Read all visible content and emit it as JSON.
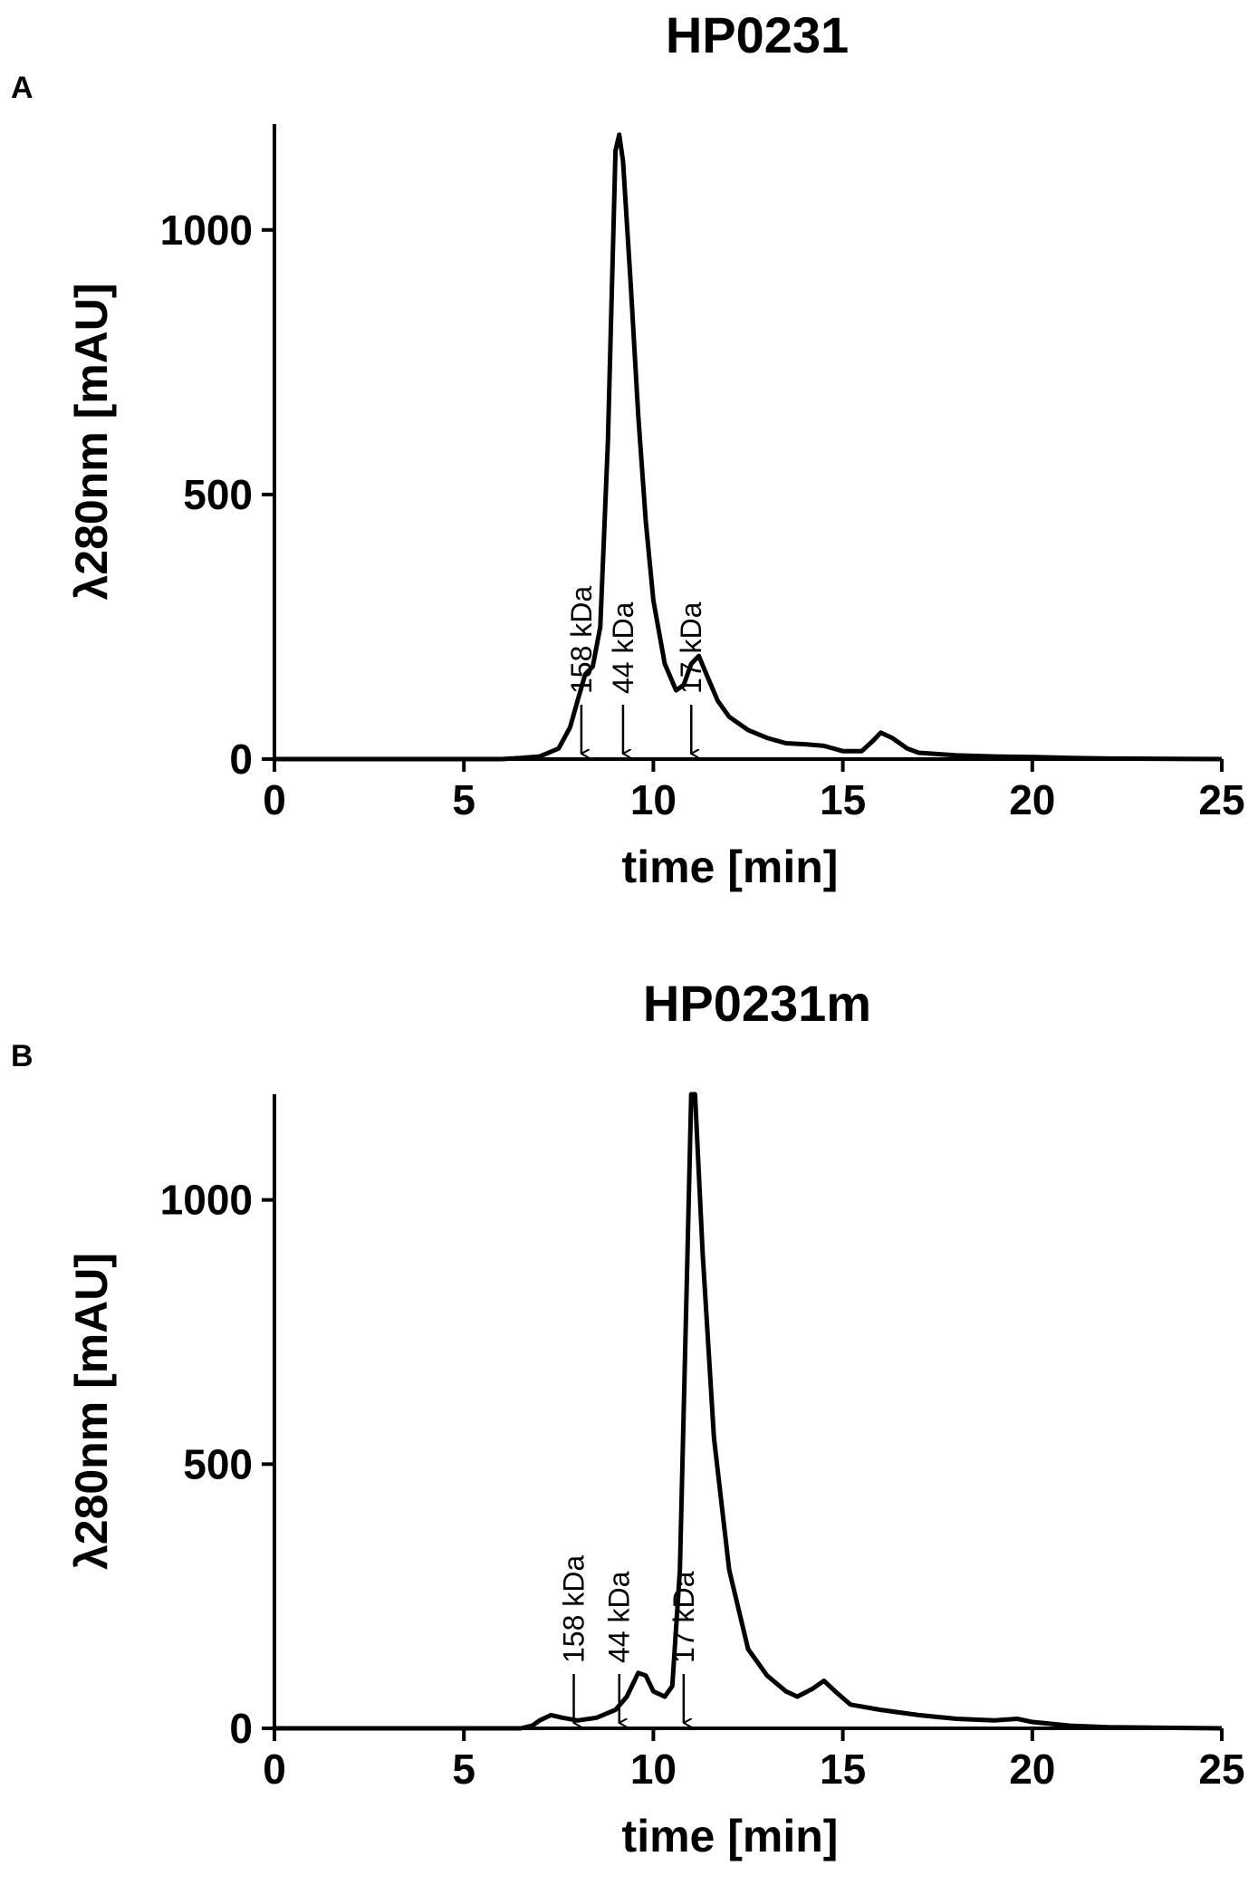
{
  "chart_data": [
    {
      "type": "line",
      "panel_label": "A",
      "title": "HP0231",
      "x_label": "time [min]",
      "y_label": "λ280nm [mAU]",
      "xlim": [
        0,
        25
      ],
      "ylim": [
        0,
        1200
      ],
      "xticks": [
        0,
        5,
        10,
        15,
        20,
        25
      ],
      "yticks": [
        0,
        500,
        1000
      ],
      "color": "#000000",
      "x": [
        0,
        6,
        6.5,
        7,
        7.5,
        7.8,
        8,
        8.2,
        8.4,
        8.6,
        8.8,
        9,
        9.1,
        9.2,
        9.4,
        9.6,
        9.8,
        10,
        10.3,
        10.6,
        10.8,
        11,
        11.2,
        11.4,
        11.7,
        12,
        12.5,
        13,
        13.5,
        14,
        14.5,
        15,
        15.5,
        15.8,
        16,
        16.3,
        16.7,
        17,
        18,
        19,
        20,
        21,
        22,
        25
      ],
      "values": [
        0,
        0,
        2,
        5,
        20,
        60,
        110,
        160,
        175,
        250,
        600,
        1150,
        1180,
        1130,
        900,
        650,
        450,
        300,
        180,
        130,
        140,
        180,
        195,
        160,
        110,
        80,
        55,
        40,
        30,
        28,
        25,
        15,
        15,
        35,
        50,
        40,
        20,
        12,
        7,
        5,
        4,
        2,
        1,
        0
      ],
      "annotations": [
        {
          "text": "158 kDa",
          "x": 8.1
        },
        {
          "text": "44 kDa",
          "x": 9.2
        },
        {
          "text": "17 kDa",
          "x": 11.0
        }
      ]
    },
    {
      "type": "line",
      "panel_label": "B",
      "title": "HP0231m",
      "x_label": "time [min]",
      "y_label": "λ280nm [mAU]",
      "xlim": [
        0,
        25
      ],
      "ylim": [
        0,
        1200
      ],
      "xticks": [
        0,
        5,
        10,
        15,
        20,
        25
      ],
      "yticks": [
        0,
        500,
        1000
      ],
      "color": "#000000",
      "x": [
        0,
        6.5,
        6.8,
        7,
        7.3,
        7.6,
        8,
        8.5,
        9,
        9.3,
        9.6,
        9.8,
        10,
        10.3,
        10.5,
        10.7,
        10.9,
        11,
        11.1,
        11.3,
        11.6,
        12,
        12.5,
        13,
        13.5,
        13.8,
        14.2,
        14.5,
        14.8,
        15.2,
        16,
        17,
        18,
        19,
        19.6,
        20,
        21,
        22,
        25
      ],
      "values": [
        0,
        0,
        5,
        15,
        25,
        20,
        15,
        20,
        35,
        60,
        105,
        100,
        70,
        60,
        80,
        300,
        900,
        1200,
        1200,
        900,
        550,
        300,
        150,
        100,
        70,
        60,
        75,
        90,
        70,
        45,
        35,
        25,
        18,
        15,
        18,
        12,
        5,
        2,
        0
      ],
      "annotations": [
        {
          "text": "158 kDa",
          "x": 7.9
        },
        {
          "text": "44 kDa",
          "x": 9.1
        },
        {
          "text": "17 kDa",
          "x": 10.8
        }
      ]
    }
  ]
}
